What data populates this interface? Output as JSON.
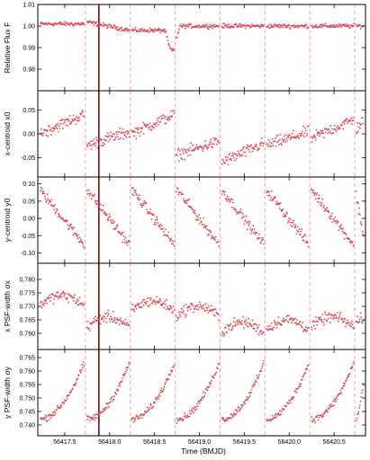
{
  "chart_data": [
    {
      "type": "scatter",
      "ylabel": "Relative Flux F",
      "ylim": [
        0.97,
        1.01
      ],
      "yticks": [
        1.01,
        1.0,
        0.99,
        0.98
      ],
      "yticklabels": [
        "1.01",
        "1.00",
        "0.99",
        "0.98"
      ],
      "description_of_shape": "flat near 1.0 with a transit dip to ~0.99 near 56418.7"
    },
    {
      "type": "scatter",
      "ylabel": "x-centroid x0",
      "ylim": [
        -0.09,
        0.09
      ],
      "yticks": [
        0.05,
        0.0,
        -0.05
      ],
      "yticklabels": [
        "0.05",
        "0.00",
        "-0.05"
      ]
    },
    {
      "type": "scatter",
      "ylabel": "y-centroid y0",
      "ylim": [
        -0.13,
        0.12
      ],
      "yticks": [
        0.1,
        0.05,
        0.0,
        -0.05,
        -0.1
      ],
      "yticklabels": [
        "0.10",
        "0.05",
        "0.00",
        "-0.05",
        "-0.10"
      ]
    },
    {
      "type": "scatter",
      "ylabel": "x PSF-width σx",
      "ylim": [
        0.754,
        0.786
      ],
      "yticks": [
        0.78,
        0.775,
        0.77,
        0.765,
        0.76
      ],
      "yticklabels": [
        "0.780",
        "0.775",
        "0.770",
        "0.765",
        "0.760"
      ]
    },
    {
      "type": "scatter",
      "ylabel": "y PSF-width σy",
      "ylim": [
        0.736,
        0.768
      ],
      "yticks": [
        0.765,
        0.76,
        0.755,
        0.75,
        0.745,
        0.74
      ],
      "yticklabels": [
        "0.765",
        "0.760",
        "0.755",
        "0.750",
        "0.745",
        "0.740"
      ]
    }
  ],
  "shared_x": {
    "xlabel": "Time (BMJD)",
    "xlim": [
      56417.2,
      56420.85
    ],
    "xticks": [
      56417.5,
      56418.0,
      56418.5,
      56419.0,
      56419.5,
      56420.0,
      56420.5
    ],
    "xticklabels": [
      "56417.5",
      "56418.0",
      "56418.5",
      "56419.0",
      "56419.5",
      "56420.0",
      "56420.5"
    ],
    "repoint_times": [
      56417.73,
      56418.23,
      56418.73,
      56419.23,
      56419.73,
      56420.23,
      56420.73
    ],
    "highlight_time": 56417.88
  },
  "colors": {
    "points": "#d94450",
    "repoint_lines": "#f2a3b0",
    "highlight_line": "#7a0a10",
    "axes": "#000000"
  }
}
